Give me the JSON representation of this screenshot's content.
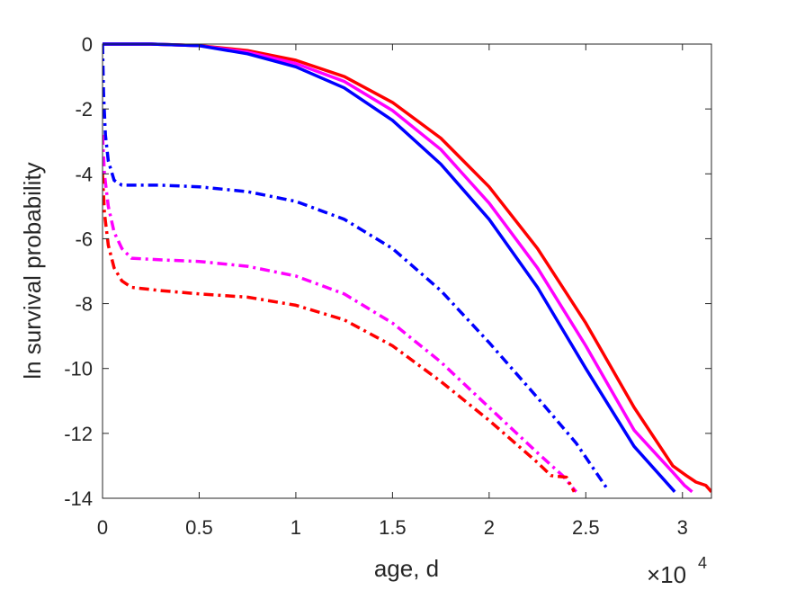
{
  "chart_data": {
    "type": "line",
    "xlabel": "age, d",
    "ylabel": "ln survival probability",
    "x_multiplier": {
      "base": "×10",
      "exponent": "4"
    },
    "xlim": [
      0,
      31500
    ],
    "ylim": [
      -14,
      0
    ],
    "xticks": [
      0,
      5000,
      10000,
      15000,
      20000,
      25000,
      30000
    ],
    "xtick_labels": [
      "0",
      "0.5",
      "1",
      "1.5",
      "2",
      "2.5",
      "3"
    ],
    "yticks": [
      0,
      -2,
      -4,
      -6,
      -8,
      -10,
      -12,
      -14
    ],
    "ytick_labels": [
      "0",
      "-2",
      "-4",
      "-6",
      "-8",
      "-10",
      "-12",
      "-14"
    ],
    "grid": false,
    "series": [
      {
        "color": "#ff0000",
        "style": "solid",
        "x": [
          0,
          2500,
          5000,
          7500,
          10000,
          12500,
          15000,
          17500,
          20000,
          22500,
          25000,
          27500,
          29500,
          30200,
          30700,
          31200,
          31500
        ],
        "y": [
          0,
          0,
          -0.05,
          -0.2,
          -0.5,
          -1.0,
          -1.8,
          -2.9,
          -4.4,
          -6.3,
          -8.6,
          -11.2,
          -13.0,
          -13.3,
          -13.5,
          -13.6,
          -13.8
        ]
      },
      {
        "color": "#ff00ff",
        "style": "solid",
        "x": [
          0,
          2500,
          5000,
          7500,
          10000,
          12500,
          15000,
          17500,
          20000,
          22500,
          25000,
          27500,
          29500,
          30100,
          30500
        ],
        "y": [
          0,
          0,
          -0.05,
          -0.25,
          -0.6,
          -1.15,
          -2.05,
          -3.25,
          -4.9,
          -6.9,
          -9.3,
          -11.9,
          -13.2,
          -13.6,
          -13.8
        ]
      },
      {
        "color": "#0000ff",
        "style": "solid",
        "x": [
          0,
          2500,
          5000,
          7500,
          10000,
          12500,
          15000,
          17500,
          20000,
          22500,
          25000,
          27500,
          29600
        ],
        "y": [
          0,
          0,
          -0.05,
          -0.3,
          -0.7,
          -1.35,
          -2.35,
          -3.7,
          -5.4,
          -7.5,
          -10.0,
          -12.4,
          -13.8
        ]
      },
      {
        "color": "#0000ff",
        "style": "dashdot",
        "x": [
          0,
          50,
          150,
          300,
          600,
          1000,
          3000,
          5000,
          7500,
          10000,
          12500,
          15000,
          17500,
          20000,
          22500,
          24500,
          26100
        ],
        "y": [
          0,
          -1.5,
          -2.8,
          -3.6,
          -4.2,
          -4.35,
          -4.35,
          -4.4,
          -4.55,
          -4.85,
          -5.4,
          -6.3,
          -7.6,
          -9.2,
          -10.9,
          -12.3,
          -13.7
        ]
      },
      {
        "color": "#ff00ff",
        "style": "dashdot",
        "x": [
          0,
          100,
          300,
          600,
          1000,
          1500,
          3000,
          5000,
          7500,
          10000,
          12500,
          15000,
          17500,
          20000,
          22500,
          23800,
          24500
        ],
        "y": [
          -2.8,
          -4.0,
          -5.0,
          -5.8,
          -6.3,
          -6.6,
          -6.65,
          -6.7,
          -6.85,
          -7.15,
          -7.7,
          -8.6,
          -9.8,
          -11.2,
          -12.6,
          -13.3,
          -13.8
        ]
      },
      {
        "color": "#ff0000",
        "style": "dashdot",
        "x": [
          0,
          100,
          300,
          600,
          1000,
          1500,
          3000,
          5000,
          7500,
          10000,
          12500,
          15000,
          17500,
          20000,
          22500,
          23200,
          24000,
          24400
        ],
        "y": [
          -4.0,
          -5.2,
          -6.2,
          -6.9,
          -7.3,
          -7.5,
          -7.6,
          -7.7,
          -7.8,
          -8.05,
          -8.5,
          -9.3,
          -10.4,
          -11.6,
          -12.9,
          -13.3,
          -13.35,
          -13.8
        ]
      }
    ]
  }
}
